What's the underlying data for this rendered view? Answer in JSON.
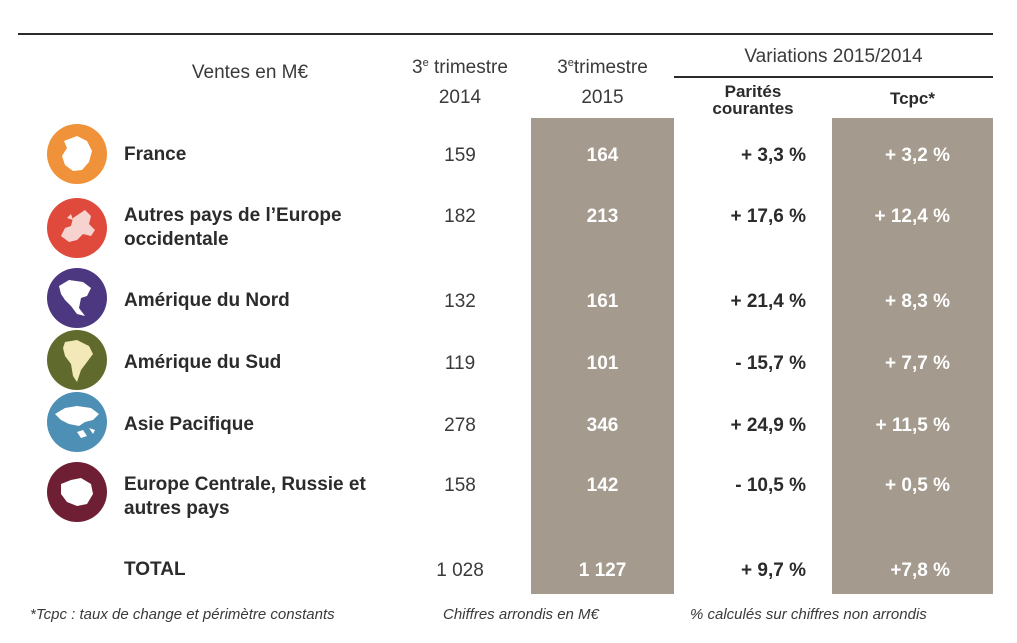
{
  "header": {
    "ventes": "Ventes en M€",
    "col2014_sup": "e",
    "col2014_line1": "3",
    "col2014_word": " trimestre",
    "col2014_line2": "2014",
    "col2015_sup": "e",
    "col2015_line1": "3",
    "col2015_word": "trimestre",
    "col2015_line2": "2015",
    "variations": "Variations 2015/2014",
    "parites_line1": "Parités",
    "parites_line2": "courantes",
    "tcpc": "Tcpc*"
  },
  "rows": [
    {
      "region": "France",
      "icon": "france-map-icon",
      "color": "#f0923a",
      "v2014": "159",
      "v2015": "164",
      "parites": "+ 3,3 %",
      "tcpc": "+ 3,2 %"
    },
    {
      "region": "Autres pays de l’Europe occidentale",
      "icon": "western-europe-map-icon",
      "color": "#e04a3c",
      "v2014": "182",
      "v2015": "213",
      "parites": "+ 17,6 %",
      "tcpc": "+ 12,4 %"
    },
    {
      "region": "Amérique du Nord",
      "icon": "north-america-map-icon",
      "color": "#4b3880",
      "v2014": "132",
      "v2015": "161",
      "parites": "+ 21,4 %",
      "tcpc": "+ 8,3 %"
    },
    {
      "region": "Amérique du Sud",
      "icon": "south-america-map-icon",
      "color": "#5f6a2c",
      "v2014": "119",
      "v2015": "101",
      "parites": "- 15,7 %",
      "tcpc": "+ 7,7 %"
    },
    {
      "region": "Asie Pacifique",
      "icon": "asia-pacific-map-icon",
      "color": "#4d8fb5",
      "v2014": "278",
      "v2015": "346",
      "parites": "+ 24,9 %",
      "tcpc": "+ 11,5 %"
    },
    {
      "region": "Europe Centrale, Russie et autres pays",
      "icon": "central-europe-map-icon",
      "color": "#6e1f33",
      "v2014": "158",
      "v2015": "142",
      "parites": "- 10,5 %",
      "tcpc": "+ 0,5 %"
    }
  ],
  "total": {
    "label": "TOTAL",
    "v2014": "1 028",
    "v2015": "1 127",
    "parites": "+ 9,7 %",
    "tcpc": "+7,8 %"
  },
  "footnotes": {
    "tcpc": "*Tcpc : taux de change et périmètre constants",
    "arrondis": "Chiffres arrondis en M€",
    "calcul": "% calculés sur chiffres non arrondis"
  },
  "colors": {
    "shade": "#a49a8e"
  }
}
